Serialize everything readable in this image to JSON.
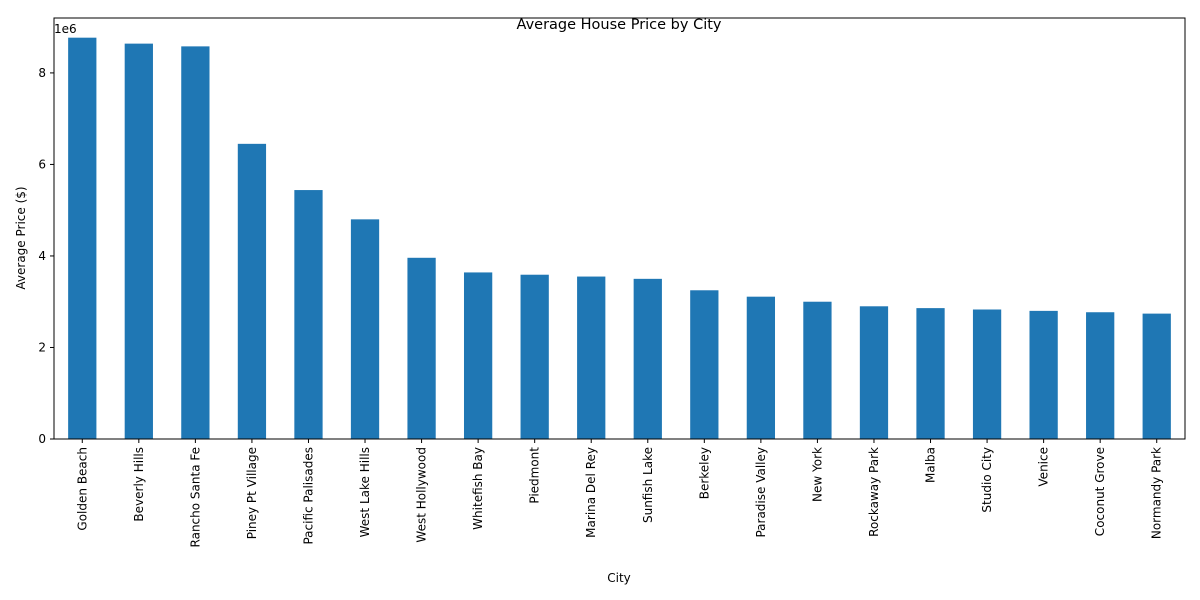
{
  "chart_data": {
    "type": "bar",
    "title": "Average House Price by City",
    "xlabel": "City",
    "ylabel": "Average Price ($)",
    "y_offset_label": "1e6",
    "ylim": [
      0,
      9200000
    ],
    "yticks": [
      0,
      2000000,
      4000000,
      6000000,
      8000000
    ],
    "ytick_labels": [
      "0",
      "2",
      "4",
      "6",
      "8"
    ],
    "bar_color": "#1f77b4",
    "grid": false,
    "categories": [
      "Golden Beach",
      "Beverly Hills",
      "Rancho Santa Fe",
      "Piney Pt Village",
      "Pacific Palisades",
      "West Lake Hills",
      "West Hollywood",
      "Whitefish Bay",
      "Piedmont",
      "Marina Del Rey",
      "Sunfish Lake",
      "Berkeley",
      "Paradise Valley",
      "New York",
      "Rockaway Park",
      "Malba",
      "Studio City",
      "Venice",
      "Coconut Grove",
      "Normandy Park"
    ],
    "values": [
      8770000,
      8640000,
      8580000,
      6450000,
      5440000,
      4800000,
      3960000,
      3640000,
      3590000,
      3550000,
      3500000,
      3250000,
      3110000,
      3000000,
      2900000,
      2860000,
      2830000,
      2800000,
      2770000,
      2740000
    ]
  }
}
